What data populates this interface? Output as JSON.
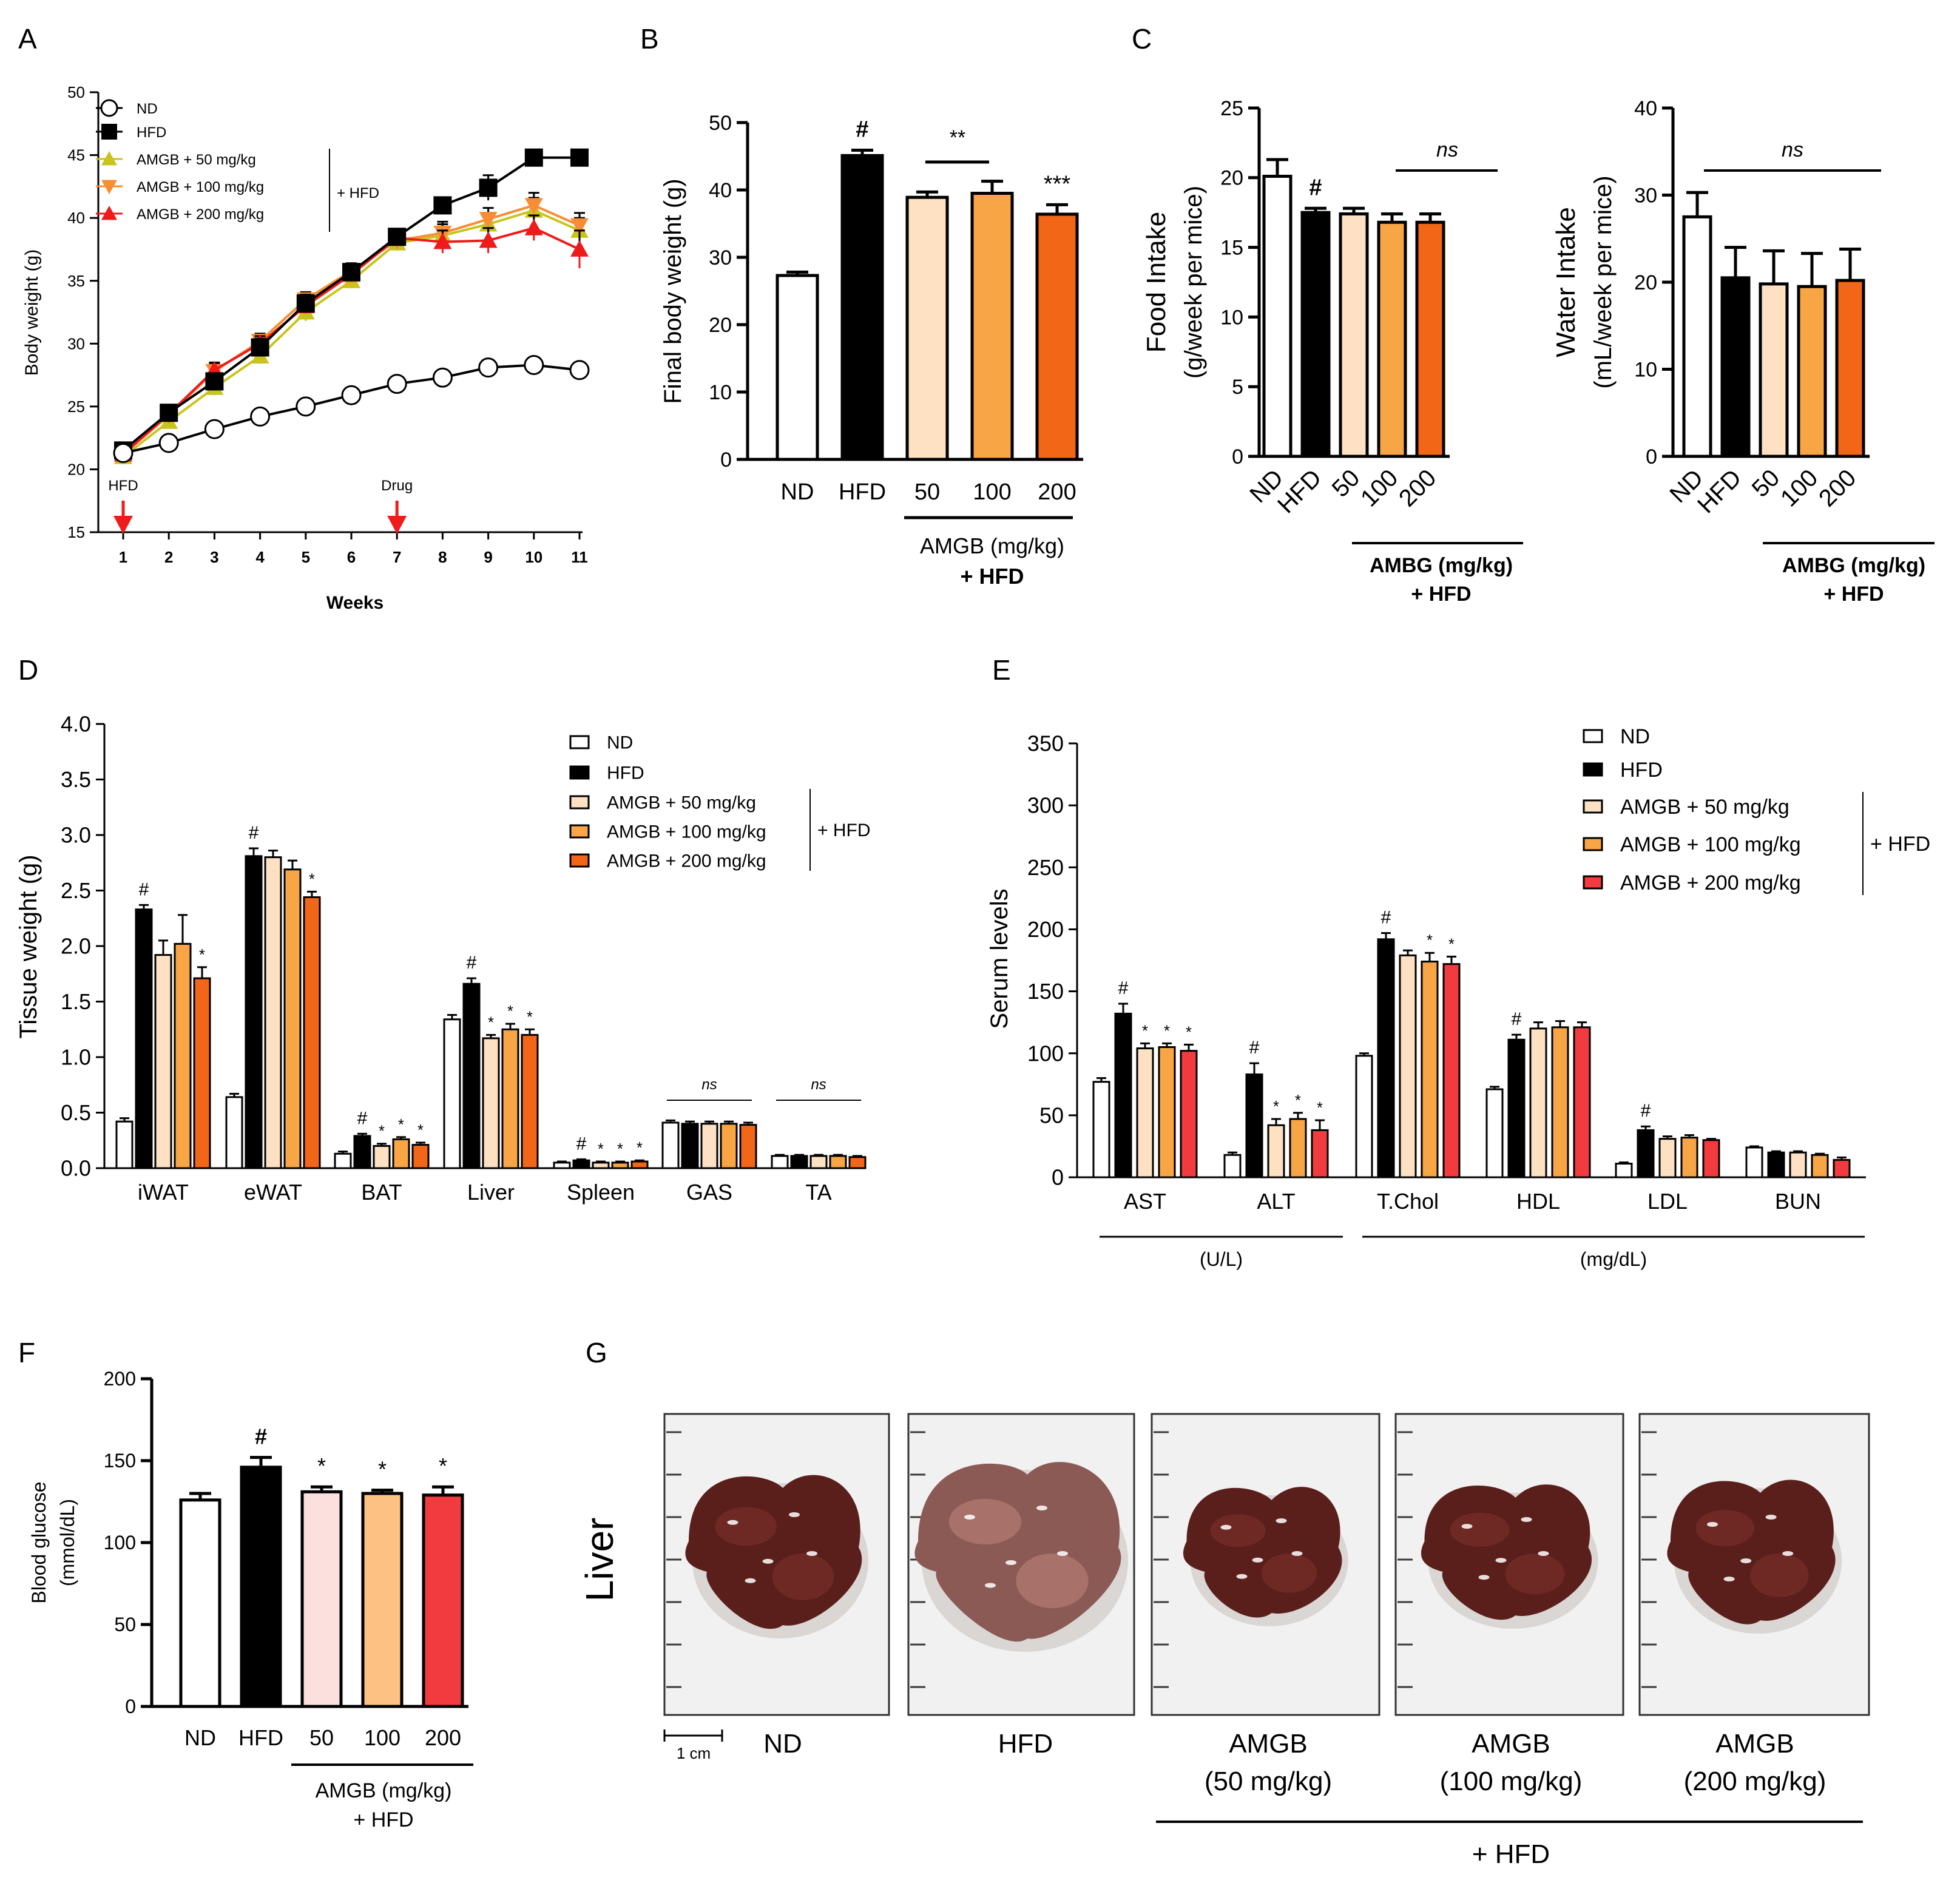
{
  "colors": {
    "nd": "#ffffff",
    "hfd": "#000000",
    "orange50": "#fde1c2",
    "orange100": "#f8a545",
    "orange200": "#f26617",
    "red200": "#f23b3e",
    "pink50": "#fbe0de",
    "peach100": "#fdc184",
    "olive": "#c9c41c",
    "orangeLine": "#f98d33",
    "redLine": "#ef1a1a",
    "arrow": "#ee1c1c"
  },
  "panels": {
    "A": "A",
    "B": "B",
    "C": "C",
    "D": "D",
    "E": "E",
    "F": "F",
    "G": "G"
  },
  "chart_data": [
    {
      "id": "A",
      "type": "line",
      "xlabel": "Weeks",
      "ylabel": "Body weight (g)",
      "x": [
        1,
        2,
        3,
        4,
        5,
        6,
        7,
        8,
        9,
        10,
        11
      ],
      "ylim": [
        15,
        50
      ],
      "yticks": [
        15,
        20,
        25,
        30,
        35,
        40,
        45,
        50
      ],
      "series": [
        {
          "name": "ND",
          "values": [
            21.3,
            22.1,
            23.2,
            24.2,
            25.0,
            25.9,
            26.8,
            27.3,
            28.1,
            28.3,
            27.9
          ],
          "err": [
            0.4,
            0.4,
            0.4,
            0.4,
            0.4,
            0.4,
            0.4,
            0.4,
            0.6,
            0.5,
            0.5
          ]
        },
        {
          "name": "HFD",
          "values": [
            21.5,
            24.5,
            27.0,
            29.7,
            33.2,
            35.7,
            38.5,
            41.0,
            42.4,
            44.8,
            44.8
          ],
          "err": [
            0.4,
            0.5,
            0.6,
            0.7,
            0.7,
            0.6,
            0.5,
            0.6,
            1.0,
            0.5,
            0.6
          ]
        },
        {
          "name": "AMGB + 50 mg/kg",
          "values": [
            21.0,
            23.8,
            26.5,
            29.0,
            32.5,
            35.0,
            38.0,
            38.6,
            39.5,
            40.6,
            39.0
          ],
          "err": [
            0.4,
            0.5,
            0.6,
            0.6,
            0.7,
            0.6,
            0.6,
            0.9,
            0.9,
            1.0,
            1.0
          ]
        },
        {
          "name": "AMGB + 100 mg/kg",
          "values": [
            21.2,
            24.3,
            27.8,
            30.2,
            33.5,
            35.8,
            38.2,
            38.8,
            39.9,
            41.0,
            39.4
          ],
          "err": [
            0.4,
            0.5,
            0.6,
            0.6,
            0.6,
            0.6,
            0.6,
            0.9,
            0.9,
            1.0,
            1.0
          ]
        },
        {
          "name": "AMGB + 200 mg/kg",
          "values": [
            21.2,
            24.4,
            27.9,
            30.0,
            33.0,
            35.5,
            38.4,
            38.1,
            38.2,
            39.2,
            37.5
          ],
          "err": [
            0.4,
            0.5,
            0.6,
            0.6,
            0.6,
            0.6,
            0.6,
            0.9,
            1.0,
            1.0,
            1.5
          ]
        }
      ],
      "legend_bracket": "+ HFD",
      "annotations": [
        {
          "label": "HFD",
          "week": 1
        },
        {
          "label": "Drug",
          "week": 7
        }
      ]
    },
    {
      "id": "B",
      "type": "bar",
      "ylabel": "Final body weight (g)",
      "categories": [
        "ND",
        "HFD",
        "50",
        "100",
        "200"
      ],
      "values": [
        27.3,
        45.1,
        38.9,
        39.5,
        36.4
      ],
      "err": [
        0.5,
        0.8,
        0.8,
        1.8,
        1.4
      ],
      "sig": [
        "",
        "#",
        "",
        "",
        "***"
      ],
      "sig_bracket": "**",
      "ylim": [
        0,
        50
      ],
      "yticks": [
        0,
        10,
        20,
        30,
        40,
        50
      ],
      "group_label": [
        "AMGB (mg/kg)",
        "+ HFD"
      ]
    },
    {
      "id": "C1",
      "type": "bar",
      "ylabel": [
        "Food Intake",
        "(g/week per mice)"
      ],
      "categories": [
        "ND",
        "HFD",
        "50",
        "100",
        "200"
      ],
      "values": [
        20.1,
        17.5,
        17.4,
        16.8,
        16.8
      ],
      "err": [
        1.2,
        0.3,
        0.4,
        0.6,
        0.6
      ],
      "sig": [
        "",
        "#",
        "",
        "",
        ""
      ],
      "sig_bracket": "ns",
      "ylim": [
        0,
        25
      ],
      "yticks": [
        0,
        5,
        10,
        15,
        20,
        25
      ],
      "group_label": [
        "AMBG (mg/kg)",
        "+ HFD"
      ]
    },
    {
      "id": "C2",
      "type": "bar",
      "ylabel": [
        "Water Intake",
        "(mL/week per mice)"
      ],
      "categories": [
        "ND",
        "HFD",
        "50",
        "100",
        "200"
      ],
      "values": [
        27.5,
        20.5,
        19.8,
        19.5,
        20.2
      ],
      "err": [
        2.8,
        3.5,
        3.8,
        3.8,
        3.6
      ],
      "sig": [
        "",
        "",
        "",
        "",
        ""
      ],
      "sig_bracket": "ns",
      "ylim": [
        0,
        40
      ],
      "yticks": [
        0,
        10,
        20,
        30,
        40
      ],
      "group_label": [
        "AMBG (mg/kg)",
        "+ HFD"
      ]
    },
    {
      "id": "D",
      "type": "bar",
      "ylabel": "Tissue weight (g)",
      "categories": [
        "iWAT",
        "eWAT",
        "BAT",
        "Liver",
        "Spleen",
        "GAS",
        "TA"
      ],
      "series": [
        {
          "name": "ND",
          "values": [
            0.42,
            0.64,
            0.13,
            1.34,
            0.05,
            0.41,
            0.11
          ],
          "err": [
            0.03,
            0.03,
            0.02,
            0.04,
            0.01,
            0.02,
            0.01
          ]
        },
        {
          "name": "HFD",
          "values": [
            2.33,
            2.81,
            0.29,
            1.66,
            0.07,
            0.4,
            0.11
          ],
          "err": [
            0.04,
            0.07,
            0.02,
            0.05,
            0.01,
            0.02,
            0.01
          ]
        },
        {
          "name": "AMGB + 50 mg/kg",
          "values": [
            1.92,
            2.8,
            0.2,
            1.17,
            0.05,
            0.4,
            0.11
          ],
          "err": [
            0.13,
            0.06,
            0.02,
            0.03,
            0.01,
            0.02,
            0.01
          ]
        },
        {
          "name": "AMGB + 100 mg/kg",
          "values": [
            2.02,
            2.69,
            0.26,
            1.25,
            0.05,
            0.4,
            0.11
          ],
          "err": [
            0.26,
            0.08,
            0.02,
            0.05,
            0.01,
            0.02,
            0.01
          ]
        },
        {
          "name": "AMGB + 200 mg/kg",
          "values": [
            1.71,
            2.44,
            0.21,
            1.2,
            0.06,
            0.39,
            0.1
          ],
          "err": [
            0.1,
            0.05,
            0.02,
            0.05,
            0.01,
            0.02,
            0.01
          ]
        }
      ],
      "sig": [
        [
          "",
          "#",
          "",
          "",
          "*"
        ],
        [
          "",
          "#",
          "",
          "",
          "*"
        ],
        [
          "",
          "#",
          "*",
          "*",
          "*"
        ],
        [
          "",
          "#",
          "*",
          "*",
          "*"
        ],
        [
          "",
          "#",
          "*",
          "*",
          "*"
        ],
        [
          "",
          "",
          "",
          "",
          ""
        ],
        [
          "",
          "",
          "",
          "",
          ""
        ]
      ],
      "ns_groups": [
        5,
        6
      ],
      "ns_label": "ns",
      "ylim": [
        0,
        4
      ],
      "yticks": [
        "0.0",
        "0.5",
        "1.0",
        "1.5",
        "2.0",
        "2.5",
        "3.0",
        "3.5",
        "4.0"
      ],
      "legend_bracket": "+ HFD"
    },
    {
      "id": "E",
      "type": "bar",
      "ylabel": "Serum levels",
      "categories": [
        "AST",
        "ALT",
        "T.Chol",
        "HDL",
        "LDL",
        "BUN"
      ],
      "series": [
        {
          "name": "ND",
          "values": [
            77,
            18,
            98,
            71,
            11,
            24
          ],
          "err": [
            3,
            2,
            2,
            2,
            1,
            1
          ]
        },
        {
          "name": "HFD",
          "values": [
            132,
            83,
            192,
            111,
            38,
            20
          ],
          "err": [
            8,
            9,
            5,
            4,
            3,
            1
          ]
        },
        {
          "name": "AMGB + 50 mg/kg",
          "values": [
            104,
            42,
            179,
            120,
            31,
            20
          ],
          "err": [
            4,
            5,
            4,
            5,
            2,
            1
          ]
        },
        {
          "name": "AMGB + 100 mg/kg",
          "values": [
            105,
            47,
            174,
            121,
            32,
            18
          ],
          "err": [
            3,
            5,
            7,
            5,
            2,
            1
          ]
        },
        {
          "name": "AMGB + 200 mg/kg",
          "values": [
            102,
            38,
            172,
            121,
            30,
            14
          ],
          "err": [
            5,
            8,
            6,
            4,
            1,
            2
          ]
        }
      ],
      "sig": [
        [
          "",
          "#",
          "*",
          "*",
          "*"
        ],
        [
          "",
          "#",
          "*",
          "*",
          "*"
        ],
        [
          "",
          "#",
          "",
          "*",
          "*"
        ],
        [
          "",
          "#",
          "",
          "",
          ""
        ],
        [
          "",
          "#",
          "",
          "",
          ""
        ],
        [
          "",
          "",
          "",
          "",
          ""
        ]
      ],
      "ylim": [
        0,
        350
      ],
      "yticks": [
        0,
        50,
        100,
        150,
        200,
        250,
        300,
        350
      ],
      "unit_groups": [
        {
          "label": "(U/L)",
          "from": 0,
          "to": 1
        },
        {
          "label": "(mg/dL)",
          "from": 2,
          "to": 5
        }
      ],
      "legend_bracket": "+ HFD"
    },
    {
      "id": "F",
      "type": "bar",
      "ylabel": [
        "Blood glucose",
        "(mmol/dL)"
      ],
      "categories": [
        "ND",
        "HFD",
        "50",
        "100",
        "200"
      ],
      "values": [
        126,
        146,
        131,
        130,
        129
      ],
      "err": [
        4,
        6,
        3,
        2,
        5
      ],
      "sig": [
        "",
        "#",
        "*",
        "*",
        "*"
      ],
      "ylim": [
        0,
        200
      ],
      "yticks": [
        0,
        50,
        100,
        150,
        200
      ],
      "group_label": [
        "AMGB (mg/kg)",
        "+ HFD"
      ]
    }
  ],
  "panelG": {
    "side_label": "Liver",
    "scale_bar": "1 cm",
    "captions": [
      [
        "ND"
      ],
      [
        "HFD"
      ],
      [
        "AMGB",
        "(50 mg/kg)"
      ],
      [
        "AMGB",
        "(100 mg/kg)"
      ],
      [
        "AMGB",
        "(200 mg/kg)"
      ]
    ],
    "group_label": "+ HFD"
  }
}
